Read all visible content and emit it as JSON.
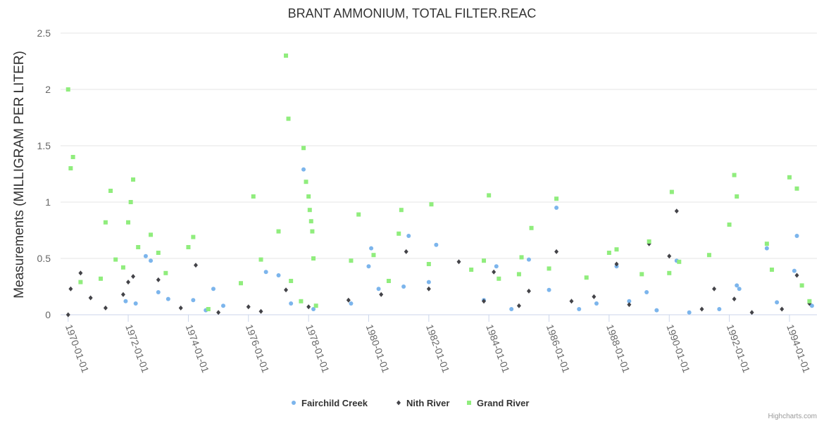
{
  "chart_data": {
    "type": "scatter",
    "title": "BRANT AMMONIUM, TOTAL FILTER.REAC",
    "ylabel": "Measurements (MILLIGRAM PER LITER)",
    "xlabel": "",
    "ylim": [
      0,
      2.5
    ],
    "xlim": [
      "1969-10-01",
      "1994-12-01"
    ],
    "y_ticks": [
      "0",
      "0.5",
      "1",
      "1.5",
      "2",
      "2.5"
    ],
    "x_ticks": [
      "1970-01-01",
      "1972-01-01",
      "1974-01-01",
      "1976-01-01",
      "1978-01-01",
      "1980-01-01",
      "1982-01-01",
      "1984-01-01",
      "1986-01-01",
      "1988-01-01",
      "1990-01-01",
      "1992-01-01",
      "1994-01-01"
    ],
    "grid": true,
    "legend_position": "bottom",
    "series": [
      {
        "name": "Fairchild Creek",
        "color": "#7cb5ec",
        "marker": "circle",
        "points": [
          [
            "1971-12-01",
            0.12
          ],
          [
            "1972-04-01",
            0.1
          ],
          [
            "1972-08-01",
            0.52
          ],
          [
            "1972-10-01",
            0.48
          ],
          [
            "1973-01-01",
            0.2
          ],
          [
            "1973-05-01",
            0.14
          ],
          [
            "1974-03-01",
            0.13
          ],
          [
            "1974-08-01",
            0.04
          ],
          [
            "1974-11-01",
            0.23
          ],
          [
            "1975-03-01",
            0.08
          ],
          [
            "1976-08-01",
            0.38
          ],
          [
            "1977-01-01",
            0.35
          ],
          [
            "1977-06-01",
            0.1
          ],
          [
            "1977-11-01",
            1.29
          ],
          [
            "1978-03-01",
            0.05
          ],
          [
            "1979-06-01",
            0.1
          ],
          [
            "1980-01-01",
            0.43
          ],
          [
            "1980-02-01",
            0.59
          ],
          [
            "1980-05-01",
            0.23
          ],
          [
            "1981-03-01",
            0.25
          ],
          [
            "1981-05-01",
            0.7
          ],
          [
            "1982-01-01",
            0.29
          ],
          [
            "1982-04-01",
            0.62
          ],
          [
            "1983-11-01",
            0.13
          ],
          [
            "1984-04-01",
            0.43
          ],
          [
            "1984-10-01",
            0.05
          ],
          [
            "1985-05-01",
            0.49
          ],
          [
            "1986-01-01",
            0.22
          ],
          [
            "1986-04-01",
            0.95
          ],
          [
            "1987-01-01",
            0.05
          ],
          [
            "1987-08-01",
            0.1
          ],
          [
            "1988-04-01",
            0.43
          ],
          [
            "1988-09-01",
            0.12
          ],
          [
            "1989-04-01",
            0.2
          ],
          [
            "1989-08-01",
            0.04
          ],
          [
            "1990-04-01",
            0.48
          ],
          [
            "1990-09-01",
            0.02
          ],
          [
            "1991-09-01",
            0.05
          ],
          [
            "1992-05-01",
            0.23
          ],
          [
            "1992-04-01",
            0.26
          ],
          [
            "1993-04-01",
            0.59
          ],
          [
            "1993-08-01",
            0.11
          ],
          [
            "1994-03-01",
            0.39
          ],
          [
            "1994-04-01",
            0.7
          ],
          [
            "1994-10-01",
            0.08
          ]
        ]
      },
      {
        "name": "Nith River",
        "color": "#434348",
        "marker": "diamond",
        "points": [
          [
            "1970-01-01",
            0.0
          ],
          [
            "1970-02-01",
            0.23
          ],
          [
            "1970-06-01",
            0.37
          ],
          [
            "1970-10-01",
            0.15
          ],
          [
            "1971-04-01",
            0.06
          ],
          [
            "1971-11-01",
            0.18
          ],
          [
            "1972-01-01",
            0.29
          ],
          [
            "1972-03-01",
            0.34
          ],
          [
            "1973-01-01",
            0.31
          ],
          [
            "1973-10-01",
            0.06
          ],
          [
            "1974-04-01",
            0.44
          ],
          [
            "1975-01-01",
            0.02
          ],
          [
            "1976-01-01",
            0.07
          ],
          [
            "1976-06-01",
            0.03
          ],
          [
            "1977-04-01",
            0.22
          ],
          [
            "1978-01-01",
            0.07
          ],
          [
            "1979-05-01",
            0.13
          ],
          [
            "1980-06-01",
            0.18
          ],
          [
            "1981-04-01",
            0.56
          ],
          [
            "1982-01-01",
            0.23
          ],
          [
            "1983-01-01",
            0.47
          ],
          [
            "1983-11-01",
            0.12
          ],
          [
            "1984-03-01",
            0.38
          ],
          [
            "1985-01-01",
            0.08
          ],
          [
            "1985-05-01",
            0.21
          ],
          [
            "1986-04-01",
            0.56
          ],
          [
            "1986-10-01",
            0.12
          ],
          [
            "1987-07-01",
            0.16
          ],
          [
            "1988-04-01",
            0.45
          ],
          [
            "1988-09-01",
            0.09
          ],
          [
            "1989-05-01",
            0.63
          ],
          [
            "1990-01-01",
            0.52
          ],
          [
            "1990-04-01",
            0.92
          ],
          [
            "1991-02-01",
            0.05
          ],
          [
            "1991-07-01",
            0.23
          ],
          [
            "1992-03-01",
            0.14
          ],
          [
            "1992-10-01",
            0.02
          ],
          [
            "1993-10-01",
            0.05
          ],
          [
            "1994-04-01",
            0.35
          ],
          [
            "1994-09-01",
            0.1
          ]
        ]
      },
      {
        "name": "Grand River",
        "color": "#90ed7d",
        "marker": "square",
        "points": [
          [
            "1970-01-01",
            2.0
          ],
          [
            "1970-02-01",
            1.3
          ],
          [
            "1970-03-01",
            1.4
          ],
          [
            "1970-06-01",
            0.29
          ],
          [
            "1971-02-01",
            0.32
          ],
          [
            "1971-04-01",
            0.82
          ],
          [
            "1971-06-01",
            1.1
          ],
          [
            "1971-08-01",
            0.49
          ],
          [
            "1971-11-01",
            0.42
          ],
          [
            "1972-01-01",
            0.82
          ],
          [
            "1972-02-01",
            1.0
          ],
          [
            "1972-03-01",
            1.2
          ],
          [
            "1972-05-01",
            0.6
          ],
          [
            "1972-10-01",
            0.71
          ],
          [
            "1973-01-01",
            0.55
          ],
          [
            "1973-04-01",
            0.37
          ],
          [
            "1974-01-01",
            0.6
          ],
          [
            "1974-03-01",
            0.69
          ],
          [
            "1974-09-01",
            0.05
          ],
          [
            "1975-10-01",
            0.28
          ],
          [
            "1976-03-01",
            1.05
          ],
          [
            "1976-06-01",
            0.49
          ],
          [
            "1977-01-01",
            0.74
          ],
          [
            "1977-04-01",
            2.3
          ],
          [
            "1977-05-01",
            1.74
          ],
          [
            "1977-06-01",
            0.3
          ],
          [
            "1977-10-01",
            0.12
          ],
          [
            "1977-11-01",
            1.48
          ],
          [
            "1977-12-01",
            1.18
          ],
          [
            "1978-01-01",
            1.05
          ],
          [
            "1978-01-15",
            0.93
          ],
          [
            "1978-02-01",
            0.83
          ],
          [
            "1978-02-15",
            0.74
          ],
          [
            "1978-03-01",
            0.5
          ],
          [
            "1978-04-01",
            0.08
          ],
          [
            "1979-06-01",
            0.48
          ],
          [
            "1979-09-01",
            0.89
          ],
          [
            "1980-03-01",
            0.53
          ],
          [
            "1980-09-01",
            0.3
          ],
          [
            "1981-01-01",
            0.72
          ],
          [
            "1981-02-01",
            0.93
          ],
          [
            "1982-01-01",
            0.45
          ],
          [
            "1982-02-01",
            0.98
          ],
          [
            "1983-06-01",
            0.4
          ],
          [
            "1983-11-01",
            0.48
          ],
          [
            "1984-01-01",
            1.06
          ],
          [
            "1984-05-01",
            0.32
          ],
          [
            "1985-01-01",
            0.36
          ],
          [
            "1985-02-01",
            0.51
          ],
          [
            "1985-06-01",
            0.77
          ],
          [
            "1986-01-01",
            0.41
          ],
          [
            "1986-04-01",
            1.03
          ],
          [
            "1987-04-01",
            0.33
          ],
          [
            "1988-01-01",
            0.55
          ],
          [
            "1988-04-01",
            0.58
          ],
          [
            "1989-02-01",
            0.36
          ],
          [
            "1989-05-01",
            0.65
          ],
          [
            "1990-01-01",
            0.37
          ],
          [
            "1990-02-01",
            1.09
          ],
          [
            "1990-05-01",
            0.47
          ],
          [
            "1991-05-01",
            0.53
          ],
          [
            "1992-01-01",
            0.8
          ],
          [
            "1992-03-01",
            1.24
          ],
          [
            "1992-04-01",
            1.05
          ],
          [
            "1993-04-01",
            0.63
          ],
          [
            "1993-06-01",
            0.4
          ],
          [
            "1994-01-01",
            1.22
          ],
          [
            "1994-04-01",
            1.12
          ],
          [
            "1994-06-01",
            0.26
          ],
          [
            "1994-09-01",
            0.12
          ]
        ]
      }
    ]
  },
  "credits": "Highcharts.com"
}
